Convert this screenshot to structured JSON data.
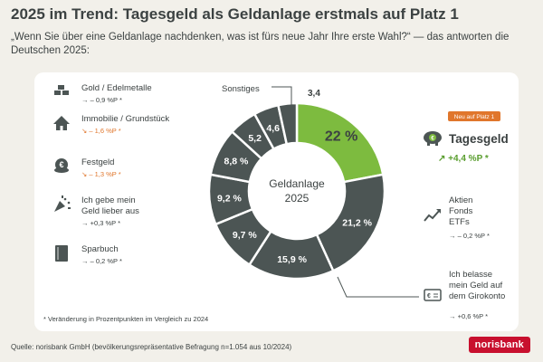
{
  "header": {
    "title": "2025 im Trend: Tagesgeld als Geldanlage erstmals auf Platz 1",
    "subtitle": "„Wenn Sie über eine Geldanlage nachdenken, was ist fürs neue Jahr Ihre erste Wahl?“ — das antworten die Deutschen 2025:"
  },
  "footer": {
    "note": "* Veränderung in Prozentpunkten im Vergleich zu 2024",
    "source": "Quelle: norisbank GmbH (bevölkerungsrepräsentative Befragung n=1.054 aus 10/2024)",
    "logo": "norisbank"
  },
  "colors": {
    "highlight": "#7dbb3f",
    "segment": "#4c5554",
    "text": "#3c4242",
    "negative": "#e0762c",
    "badge": "#e0762c",
    "logo": "#c8102e"
  },
  "chart_data": {
    "type": "pie",
    "donut": true,
    "center_label": [
      "Geldanlage",
      "2025"
    ],
    "badge": "Neu auf Platz 1",
    "slices": [
      {
        "label": "Tagesgeld",
        "value": 22,
        "value_label": "22 %",
        "change": "↗ +4,4 %P *",
        "trend": "up",
        "icon": "piggy-bank-icon",
        "highlight": true
      },
      {
        "label": "Aktien\nFonds\nETFs",
        "value": 21.2,
        "value_label": "21,2 %",
        "change": "→ – 0,2 %P *",
        "trend": "flat",
        "icon": "stock-chart-icon"
      },
      {
        "label": "Ich belasse\nmein Geld auf\ndem Girokonto",
        "value": 15.9,
        "value_label": "15,9 %",
        "change": "→ +0,6 %P *",
        "trend": "flat",
        "icon": "bank-card-icon"
      },
      {
        "label": "Sparbuch",
        "value": 9.7,
        "value_label": "9,7 %",
        "change": "→ – 0,2 %P *",
        "trend": "flat",
        "icon": "savings-book-icon"
      },
      {
        "label": "Ich gebe mein\nGeld lieber aus",
        "value": 9.2,
        "value_label": "9,2 %",
        "change": "→ +0,3 %P *",
        "trend": "flat",
        "icon": "party-popper-icon"
      },
      {
        "label": "Festgeld",
        "value": 8.8,
        "value_label": "8,8 %",
        "change": "↘ – 1,3 %P *",
        "trend": "down",
        "icon": "euro-coins-icon"
      },
      {
        "label": "Immobilie / Grundstück",
        "value": 5.2,
        "value_label": "5,2",
        "change": "↘ – 1,6 %P *",
        "trend": "down",
        "icon": "house-icon"
      },
      {
        "label": "Gold / Edelmetalle",
        "value": 4.6,
        "value_label": "4,6",
        "change": "→ – 0,9 %P *",
        "trend": "flat",
        "icon": "gold-bars-icon"
      },
      {
        "label": "Sonstiges",
        "value": 3.4,
        "value_label": "3,4",
        "change": "",
        "trend": "none",
        "icon": ""
      }
    ]
  }
}
